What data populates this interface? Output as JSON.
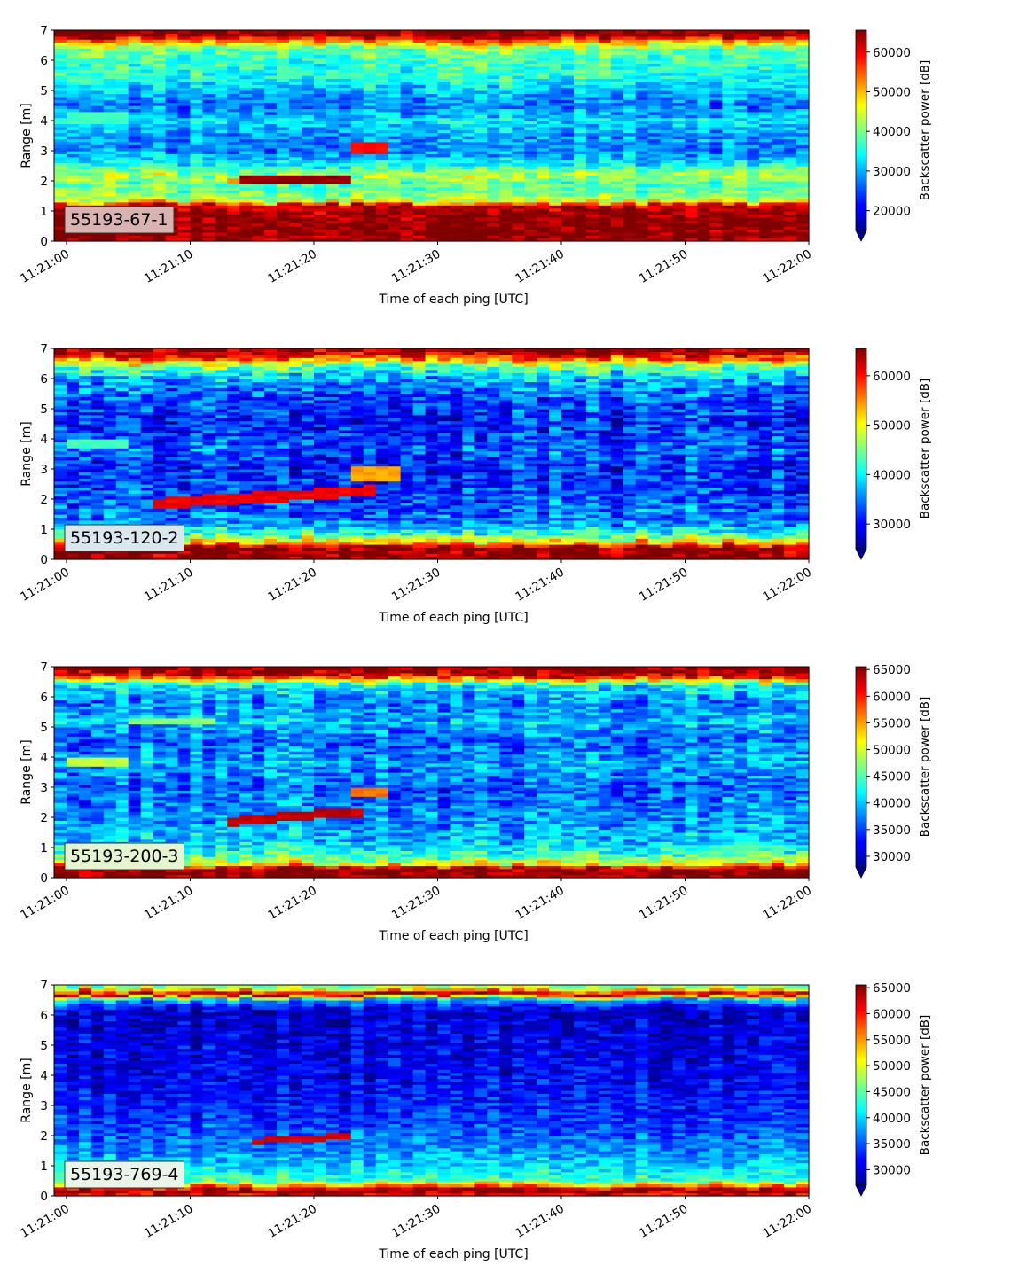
{
  "chart_data": [
    {
      "type": "heatmap",
      "label": "55193-67-1",
      "xlabel": "Time of each ping [UTC]",
      "ylabel": "Range [m]",
      "colorbar_label": "Backscatter power [dB]",
      "colormap": "jet",
      "colorbar_extend": "min",
      "label_box_color": "#d9b2b2",
      "xlim": [
        "11:20:59",
        "11:22:00"
      ],
      "xticks": [
        "11:21:00",
        "11:21:10",
        "11:21:20",
        "11:21:30",
        "11:21:40",
        "11:21:50",
        "11:22:00"
      ],
      "ylim": [
        0,
        7
      ],
      "yticks": [
        0,
        1,
        2,
        3,
        4,
        5,
        6,
        7
      ],
      "clim": [
        15000,
        65535
      ],
      "cticks": [
        20000,
        30000,
        40000,
        50000,
        60000
      ],
      "profile": [
        {
          "range": 0.0,
          "value": 64000
        },
        {
          "range": 0.25,
          "value": 65535
        },
        {
          "range": 0.6,
          "value": 65535
        },
        {
          "range": 1.0,
          "value": 64000
        },
        {
          "range": 1.2,
          "value": 62000
        },
        {
          "range": 1.35,
          "value": 44000
        },
        {
          "range": 1.6,
          "value": 40000
        },
        {
          "range": 1.9,
          "value": 38000
        },
        {
          "range": 2.2,
          "value": 43000
        },
        {
          "range": 2.6,
          "value": 33000
        },
        {
          "range": 3.0,
          "value": 28000
        },
        {
          "range": 3.5,
          "value": 29000
        },
        {
          "range": 4.0,
          "value": 33000
        },
        {
          "range": 4.5,
          "value": 27000
        },
        {
          "range": 5.0,
          "value": 31000
        },
        {
          "range": 5.5,
          "value": 36000
        },
        {
          "range": 6.0,
          "value": 37000
        },
        {
          "range": 6.4,
          "value": 40000
        },
        {
          "range": 6.7,
          "value": 56000
        },
        {
          "range": 6.85,
          "value": 65535
        },
        {
          "range": 7.0,
          "value": 65535
        }
      ],
      "noise": 5500,
      "targets": [
        {
          "t0": 14,
          "t1": 22,
          "r0": 1.95,
          "r1": 2.15,
          "value": 65535
        },
        {
          "t0": 13,
          "t1": 15,
          "r0": 1.95,
          "r1": 2.1,
          "value": 52000
        },
        {
          "t0": 23,
          "t1": 25,
          "r0": 2.9,
          "r1": 3.3,
          "value": 60000
        },
        {
          "t0": 0,
          "t1": 4,
          "r0": 3.95,
          "r1": 4.3,
          "value": 38000
        }
      ]
    },
    {
      "type": "heatmap",
      "label": "55193-120-2",
      "xlabel": "Time of each ping [UTC]",
      "ylabel": "Range [m]",
      "colorbar_label": "Backscatter power [dB]",
      "colormap": "jet",
      "colorbar_extend": "min",
      "label_box_color": "#d8e8ee",
      "xlim": [
        "11:20:59",
        "11:22:00"
      ],
      "xticks": [
        "11:21:00",
        "11:21:10",
        "11:21:20",
        "11:21:30",
        "11:21:40",
        "11:21:50",
        "11:22:00"
      ],
      "ylim": [
        0,
        7
      ],
      "yticks": [
        0,
        1,
        2,
        3,
        4,
        5,
        6,
        7
      ],
      "clim": [
        25000,
        65535
      ],
      "cticks": [
        30000,
        40000,
        50000,
        60000
      ],
      "profile": [
        {
          "range": 0.0,
          "value": 65535
        },
        {
          "range": 0.4,
          "value": 65535
        },
        {
          "range": 0.6,
          "value": 52000
        },
        {
          "range": 0.85,
          "value": 42000
        },
        {
          "range": 1.2,
          "value": 36000
        },
        {
          "range": 1.7,
          "value": 34000
        },
        {
          "range": 2.2,
          "value": 33000
        },
        {
          "range": 3.0,
          "value": 31000
        },
        {
          "range": 3.7,
          "value": 34000
        },
        {
          "range": 4.5,
          "value": 31000
        },
        {
          "range": 5.5,
          "value": 34000
        },
        {
          "range": 6.0,
          "value": 37000
        },
        {
          "range": 6.4,
          "value": 44000
        },
        {
          "range": 6.75,
          "value": 60000
        },
        {
          "range": 7.0,
          "value": 65535
        }
      ],
      "noise": 6000,
      "targets": [
        {
          "t0": 7,
          "t1": 24,
          "r0": 1.7,
          "r1": 2.05,
          "value": 62000,
          "slope": 0.025
        },
        {
          "t0": 23,
          "t1": 26,
          "r0": 2.6,
          "r1": 3.1,
          "value": 55000
        },
        {
          "t0": 0,
          "t1": 4,
          "r0": 3.75,
          "r1": 4.0,
          "value": 44000
        }
      ]
    },
    {
      "type": "heatmap",
      "label": "55193-200-3",
      "xlabel": "Time of each ping [UTC]",
      "ylabel": "Range [m]",
      "colorbar_label": "Backscatter power [dB]",
      "colormap": "jet",
      "colorbar_extend": "min",
      "label_box_color": "#e4f5cf",
      "xlim": [
        "11:20:59",
        "11:22:00"
      ],
      "xticks": [
        "11:21:00",
        "11:21:10",
        "11:21:20",
        "11:21:30",
        "11:21:40",
        "11:21:50",
        "11:22:00"
      ],
      "ylim": [
        0,
        7
      ],
      "yticks": [
        0,
        1,
        2,
        3,
        4,
        5,
        6,
        7
      ],
      "clim": [
        28000,
        65535
      ],
      "cticks": [
        30000,
        35000,
        40000,
        45000,
        50000,
        55000,
        60000,
        65000
      ],
      "profile": [
        {
          "range": 0.0,
          "value": 65535
        },
        {
          "range": 0.3,
          "value": 65535
        },
        {
          "range": 0.45,
          "value": 52000
        },
        {
          "range": 0.7,
          "value": 45000
        },
        {
          "range": 1.2,
          "value": 40000
        },
        {
          "range": 2.0,
          "value": 38000
        },
        {
          "range": 3.0,
          "value": 36000
        },
        {
          "range": 3.8,
          "value": 39000
        },
        {
          "range": 4.5,
          "value": 36000
        },
        {
          "range": 5.2,
          "value": 40000
        },
        {
          "range": 5.8,
          "value": 37000
        },
        {
          "range": 6.4,
          "value": 42000
        },
        {
          "range": 6.7,
          "value": 62000
        },
        {
          "range": 7.0,
          "value": 65535
        }
      ],
      "noise": 5000,
      "targets": [
        {
          "t0": 13,
          "t1": 23,
          "r0": 1.75,
          "r1": 2.05,
          "value": 64000,
          "slope": 0.03
        },
        {
          "t0": 23,
          "t1": 25,
          "r0": 2.7,
          "r1": 3.0,
          "value": 58000
        },
        {
          "t0": 0,
          "t1": 4,
          "r0": 3.75,
          "r1": 3.95,
          "value": 50000
        },
        {
          "t0": 5,
          "t1": 11,
          "r0": 5.1,
          "r1": 5.35,
          "value": 48000
        }
      ]
    },
    {
      "type": "heatmap",
      "label": "55193-769-4",
      "xlabel": "Time of each ping [UTC]",
      "ylabel": "Range [m]",
      "colorbar_label": "Backscatter power [dB]",
      "colormap": "jet",
      "colorbar_extend": "min",
      "label_box_color": "#e8f5e8",
      "xlim": [
        "11:20:59",
        "11:22:00"
      ],
      "xticks": [
        "11:21:00",
        "11:21:10",
        "11:21:20",
        "11:21:30",
        "11:21:40",
        "11:21:50",
        "11:22:00"
      ],
      "ylim": [
        0,
        7
      ],
      "yticks": [
        0,
        1,
        2,
        3,
        4,
        5,
        6,
        7
      ],
      "clim": [
        27000,
        65535
      ],
      "cticks": [
        30000,
        35000,
        40000,
        45000,
        50000,
        55000,
        60000,
        65000
      ],
      "profile": [
        {
          "range": 0.0,
          "value": 60000
        },
        {
          "range": 0.2,
          "value": 65535
        },
        {
          "range": 0.35,
          "value": 56000
        },
        {
          "range": 0.5,
          "value": 44000
        },
        {
          "range": 1.0,
          "value": 40000
        },
        {
          "range": 1.6,
          "value": 37000
        },
        {
          "range": 2.5,
          "value": 34000
        },
        {
          "range": 3.5,
          "value": 32000
        },
        {
          "range": 5.0,
          "value": 31000
        },
        {
          "range": 6.2,
          "value": 30000
        },
        {
          "range": 6.55,
          "value": 40000
        },
        {
          "range": 6.7,
          "value": 65535
        },
        {
          "range": 6.85,
          "value": 52000
        },
        {
          "range": 7.0,
          "value": 45000
        }
      ],
      "noise": 4000,
      "targets": [
        {
          "t0": 15,
          "t1": 22,
          "r0": 1.75,
          "r1": 1.95,
          "value": 63000,
          "slope": 0.02
        }
      ]
    }
  ]
}
